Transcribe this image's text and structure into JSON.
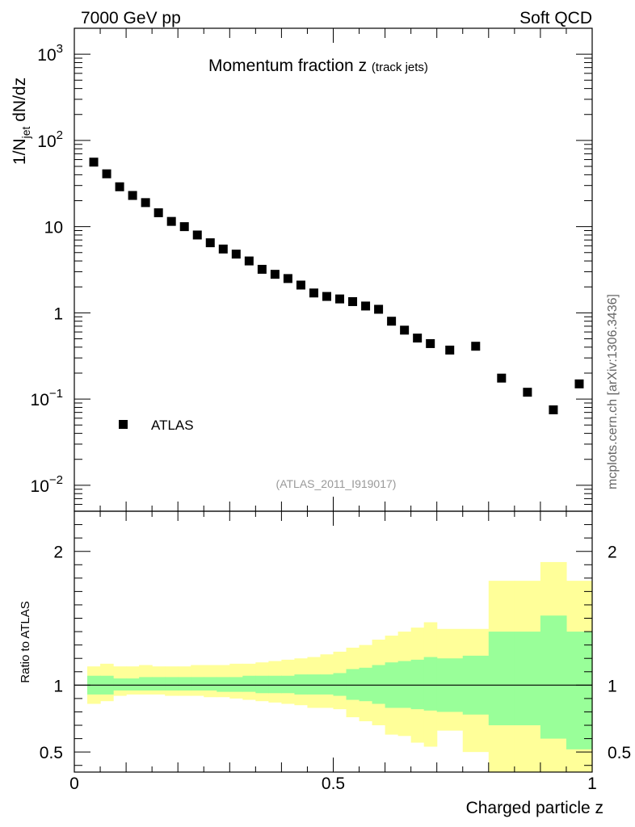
{
  "header": {
    "left": "7000 GeV pp",
    "right": "Soft QCD"
  },
  "side_label": "mcplots.cern.ch [arXiv:1306.3436]",
  "reference": "(ATLAS_2011_I919017)",
  "chart_data": [
    {
      "type": "scatter",
      "title": "Momentum fraction z",
      "title_sub": "(track jets)",
      "xlabel": "",
      "ylabel": "1/N_jet dN/dz",
      "ylabel_parts": {
        "pre": "1/N",
        "sub": "jet",
        "post": " dN/dz"
      },
      "yscale": "log",
      "xlim": [
        0,
        1
      ],
      "ylim": [
        0.005,
        2000
      ],
      "ytick_labels": [
        {
          "value": 0.01,
          "base": "10",
          "exp": "−2"
        },
        {
          "value": 0.1,
          "base": "10",
          "exp": "−1"
        },
        {
          "value": 1,
          "base": "1",
          "exp": ""
        },
        {
          "value": 10,
          "base": "10",
          "exp": ""
        },
        {
          "value": 100,
          "base": "10",
          "exp": "2"
        },
        {
          "value": 1000,
          "base": "10",
          "exp": "3"
        }
      ],
      "legend": {
        "position": "bottom-left",
        "entries": [
          "ATLAS"
        ]
      },
      "series": [
        {
          "name": "ATLAS",
          "marker": "square",
          "color": "#000000",
          "x": [
            0.0375,
            0.0625,
            0.0875,
            0.1125,
            0.1375,
            0.1625,
            0.1875,
            0.2125,
            0.2375,
            0.2625,
            0.2875,
            0.3125,
            0.3375,
            0.3625,
            0.3875,
            0.4125,
            0.4375,
            0.4625,
            0.4875,
            0.5125,
            0.5375,
            0.5625,
            0.5875,
            0.6125,
            0.6375,
            0.6625,
            0.6875,
            0.725,
            0.775,
            0.825,
            0.875,
            0.925,
            0.975
          ],
          "y": [
            56,
            41,
            29,
            23,
            19,
            14.5,
            11.5,
            10,
            8,
            6.5,
            5.5,
            4.8,
            4.0,
            3.2,
            2.8,
            2.5,
            2.1,
            1.7,
            1.55,
            1.45,
            1.35,
            1.2,
            1.1,
            0.8,
            0.63,
            0.51,
            0.44,
            0.37,
            0.41,
            0.175,
            0.12,
            0.075,
            0.15
          ]
        }
      ]
    },
    {
      "type": "area",
      "title": "",
      "xlabel": "Charged particle z",
      "ylabel": "Ratio to ATLAS",
      "xlim": [
        0,
        1
      ],
      "ylim": [
        0.35,
        2.3
      ],
      "xtick_labels": [
        "0",
        "0.5",
        "1"
      ],
      "xtick_values": [
        0,
        0.5,
        1
      ],
      "ytick_labels": [
        "0.5",
        "1",
        "2"
      ],
      "ytick_values": [
        0.5,
        1,
        2
      ],
      "reference_line": 1,
      "bands": {
        "edges": [
          0.025,
          0.05,
          0.075,
          0.1,
          0.125,
          0.15,
          0.175,
          0.2,
          0.225,
          0.25,
          0.275,
          0.3,
          0.325,
          0.35,
          0.375,
          0.4,
          0.425,
          0.45,
          0.475,
          0.5,
          0.525,
          0.55,
          0.575,
          0.6,
          0.625,
          0.65,
          0.675,
          0.7,
          0.75,
          0.8,
          0.85,
          0.9,
          0.95,
          1.0
        ],
        "outer": {
          "name": "total uncertainty",
          "color": "#ffff99",
          "low": [
            0.86,
            0.88,
            0.92,
            0.93,
            0.93,
            0.93,
            0.92,
            0.92,
            0.92,
            0.91,
            0.91,
            0.9,
            0.89,
            0.88,
            0.87,
            0.86,
            0.85,
            0.83,
            0.83,
            0.82,
            0.76,
            0.73,
            0.7,
            0.63,
            0.62,
            0.57,
            0.54,
            0.66,
            0.5,
            0.34,
            0.34,
            0.34,
            0.34,
            0.34
          ],
          "high": [
            1.14,
            1.16,
            1.14,
            1.14,
            1.15,
            1.14,
            1.14,
            1.14,
            1.15,
            1.15,
            1.15,
            1.16,
            1.16,
            1.17,
            1.18,
            1.19,
            1.2,
            1.21,
            1.23,
            1.25,
            1.28,
            1.3,
            1.34,
            1.37,
            1.4,
            1.43,
            1.47,
            1.42,
            1.42,
            1.78,
            1.78,
            1.92,
            1.78,
            1.78
          ]
        },
        "inner": {
          "name": "statistical uncertainty",
          "color": "#99ff99",
          "low": [
            0.93,
            0.93,
            0.96,
            0.96,
            0.96,
            0.96,
            0.96,
            0.96,
            0.96,
            0.96,
            0.95,
            0.95,
            0.95,
            0.94,
            0.94,
            0.94,
            0.93,
            0.93,
            0.93,
            0.92,
            0.89,
            0.88,
            0.86,
            0.83,
            0.83,
            0.82,
            0.81,
            0.8,
            0.78,
            0.7,
            0.7,
            0.6,
            0.52,
            0.7
          ],
          "high": [
            1.07,
            1.07,
            1.05,
            1.05,
            1.06,
            1.06,
            1.06,
            1.06,
            1.06,
            1.06,
            1.06,
            1.06,
            1.07,
            1.07,
            1.07,
            1.07,
            1.08,
            1.08,
            1.08,
            1.09,
            1.12,
            1.13,
            1.15,
            1.17,
            1.18,
            1.19,
            1.21,
            1.2,
            1.22,
            1.4,
            1.4,
            1.52,
            1.4,
            1.4
          ]
        }
      }
    }
  ]
}
